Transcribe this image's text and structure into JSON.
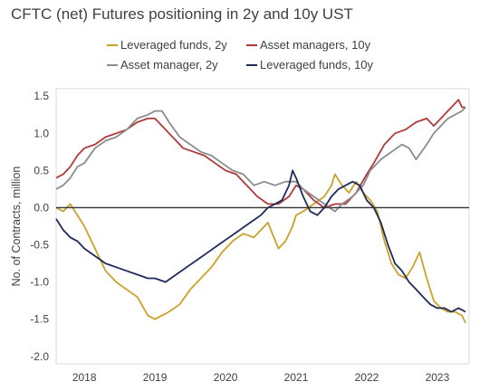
{
  "chart_data": {
    "type": "line",
    "title": "CFTC (net) Futures positioning in 2y and 10y UST",
    "xlabel": "",
    "ylabel": "No. of Contracts, million",
    "xlim": [
      2017.6,
      2023.45
    ],
    "ylim": [
      -2.1,
      1.6
    ],
    "yticks": [
      1.5,
      1.0,
      0.5,
      0.0,
      -0.5,
      -1.0,
      -1.5,
      -2.0
    ],
    "ytick_labels": [
      "1.5",
      "1.0",
      "0.5",
      "0.0",
      "-0.5",
      "-1.0",
      "-1.5",
      "-2.0"
    ],
    "xtick_labels": [
      "2018",
      "2019",
      "2020",
      "2021",
      "2022",
      "2023"
    ],
    "xtick_positions": [
      2018.0,
      2019.0,
      2020.0,
      2021.0,
      2022.0,
      2023.0
    ],
    "zero_line": true,
    "grid": false,
    "legend_position": "top",
    "series": [
      {
        "name": "Leveraged funds, 2y",
        "color": "#c9a227",
        "points": [
          [
            2017.6,
            0.0
          ],
          [
            2017.7,
            -0.05
          ],
          [
            2017.8,
            0.05
          ],
          [
            2017.9,
            -0.1
          ],
          [
            2018.0,
            -0.25
          ],
          [
            2018.15,
            -0.55
          ],
          [
            2018.3,
            -0.85
          ],
          [
            2018.45,
            -1.0
          ],
          [
            2018.6,
            -1.1
          ],
          [
            2018.75,
            -1.2
          ],
          [
            2018.9,
            -1.45
          ],
          [
            2019.0,
            -1.5
          ],
          [
            2019.1,
            -1.45
          ],
          [
            2019.2,
            -1.4
          ],
          [
            2019.35,
            -1.3
          ],
          [
            2019.5,
            -1.1
          ],
          [
            2019.65,
            -0.95
          ],
          [
            2019.8,
            -0.8
          ],
          [
            2019.95,
            -0.6
          ],
          [
            2020.1,
            -0.45
          ],
          [
            2020.25,
            -0.35
          ],
          [
            2020.4,
            -0.4
          ],
          [
            2020.5,
            -0.3
          ],
          [
            2020.6,
            -0.2
          ],
          [
            2020.75,
            -0.55
          ],
          [
            2020.85,
            -0.45
          ],
          [
            2020.95,
            -0.25
          ],
          [
            2021.0,
            -0.1
          ],
          [
            2021.1,
            -0.05
          ],
          [
            2021.25,
            0.05
          ],
          [
            2021.4,
            0.15
          ],
          [
            2021.5,
            0.3
          ],
          [
            2021.55,
            0.45
          ],
          [
            2021.65,
            0.3
          ],
          [
            2021.75,
            0.2
          ],
          [
            2021.85,
            0.35
          ],
          [
            2021.95,
            0.2
          ],
          [
            2022.05,
            0.1
          ],
          [
            2022.15,
            -0.05
          ],
          [
            2022.25,
            -0.45
          ],
          [
            2022.35,
            -0.75
          ],
          [
            2022.45,
            -0.9
          ],
          [
            2022.55,
            -0.95
          ],
          [
            2022.65,
            -0.8
          ],
          [
            2022.75,
            -0.6
          ],
          [
            2022.85,
            -0.95
          ],
          [
            2022.95,
            -1.25
          ],
          [
            2023.05,
            -1.35
          ],
          [
            2023.15,
            -1.4
          ],
          [
            2023.25,
            -1.4
          ],
          [
            2023.35,
            -1.45
          ],
          [
            2023.4,
            -1.55
          ]
        ]
      },
      {
        "name": "Asset managers, 10y",
        "color": "#b03a3a",
        "points": [
          [
            2017.6,
            0.4
          ],
          [
            2017.7,
            0.45
          ],
          [
            2017.8,
            0.55
          ],
          [
            2017.9,
            0.7
          ],
          [
            2018.0,
            0.8
          ],
          [
            2018.15,
            0.85
          ],
          [
            2018.3,
            0.95
          ],
          [
            2018.45,
            1.0
          ],
          [
            2018.6,
            1.05
          ],
          [
            2018.75,
            1.15
          ],
          [
            2018.9,
            1.2
          ],
          [
            2019.0,
            1.2
          ],
          [
            2019.1,
            1.1
          ],
          [
            2019.25,
            0.95
          ],
          [
            2019.4,
            0.8
          ],
          [
            2019.55,
            0.75
          ],
          [
            2019.7,
            0.7
          ],
          [
            2019.85,
            0.6
          ],
          [
            2020.0,
            0.5
          ],
          [
            2020.15,
            0.45
          ],
          [
            2020.3,
            0.3
          ],
          [
            2020.45,
            0.15
          ],
          [
            2020.6,
            0.05
          ],
          [
            2020.75,
            0.05
          ],
          [
            2020.9,
            0.15
          ],
          [
            2021.0,
            0.3
          ],
          [
            2021.1,
            0.25
          ],
          [
            2021.25,
            0.1
          ],
          [
            2021.4,
            0.0
          ],
          [
            2021.55,
            0.05
          ],
          [
            2021.7,
            0.05
          ],
          [
            2021.85,
            0.2
          ],
          [
            2022.0,
            0.45
          ],
          [
            2022.1,
            0.6
          ],
          [
            2022.25,
            0.85
          ],
          [
            2022.4,
            1.0
          ],
          [
            2022.55,
            1.05
          ],
          [
            2022.7,
            1.15
          ],
          [
            2022.85,
            1.2
          ],
          [
            2022.95,
            1.1
          ],
          [
            2023.05,
            1.2
          ],
          [
            2023.15,
            1.3
          ],
          [
            2023.25,
            1.4
          ],
          [
            2023.3,
            1.45
          ],
          [
            2023.35,
            1.35
          ],
          [
            2023.4,
            1.35
          ]
        ]
      },
      {
        "name": "Asset manager, 2y",
        "color": "#8c8c8c",
        "points": [
          [
            2017.6,
            0.25
          ],
          [
            2017.7,
            0.3
          ],
          [
            2017.8,
            0.4
          ],
          [
            2017.9,
            0.55
          ],
          [
            2018.0,
            0.6
          ],
          [
            2018.15,
            0.8
          ],
          [
            2018.3,
            0.9
          ],
          [
            2018.45,
            0.95
          ],
          [
            2018.6,
            1.05
          ],
          [
            2018.75,
            1.2
          ],
          [
            2018.9,
            1.25
          ],
          [
            2019.0,
            1.3
          ],
          [
            2019.1,
            1.3
          ],
          [
            2019.2,
            1.15
          ],
          [
            2019.35,
            0.95
          ],
          [
            2019.5,
            0.85
          ],
          [
            2019.65,
            0.75
          ],
          [
            2019.8,
            0.7
          ],
          [
            2019.95,
            0.6
          ],
          [
            2020.1,
            0.5
          ],
          [
            2020.25,
            0.45
          ],
          [
            2020.4,
            0.3
          ],
          [
            2020.55,
            0.35
          ],
          [
            2020.7,
            0.3
          ],
          [
            2020.85,
            0.35
          ],
          [
            2021.0,
            0.35
          ],
          [
            2021.1,
            0.25
          ],
          [
            2021.25,
            0.15
          ],
          [
            2021.4,
            0.05
          ],
          [
            2021.55,
            -0.05
          ],
          [
            2021.65,
            0.05
          ],
          [
            2021.8,
            0.15
          ],
          [
            2021.95,
            0.3
          ],
          [
            2022.05,
            0.5
          ],
          [
            2022.2,
            0.65
          ],
          [
            2022.35,
            0.75
          ],
          [
            2022.5,
            0.85
          ],
          [
            2022.6,
            0.8
          ],
          [
            2022.7,
            0.65
          ],
          [
            2022.85,
            0.85
          ],
          [
            2022.95,
            1.0
          ],
          [
            2023.05,
            1.1
          ],
          [
            2023.15,
            1.2
          ],
          [
            2023.25,
            1.25
          ],
          [
            2023.35,
            1.3
          ],
          [
            2023.4,
            1.35
          ]
        ]
      },
      {
        "name": "Leveraged funds, 10y",
        "color": "#1f2a5c",
        "points": [
          [
            2017.6,
            -0.15
          ],
          [
            2017.7,
            -0.3
          ],
          [
            2017.8,
            -0.4
          ],
          [
            2017.9,
            -0.45
          ],
          [
            2018.0,
            -0.55
          ],
          [
            2018.15,
            -0.65
          ],
          [
            2018.3,
            -0.75
          ],
          [
            2018.45,
            -0.8
          ],
          [
            2018.6,
            -0.85
          ],
          [
            2018.75,
            -0.9
          ],
          [
            2018.9,
            -0.95
          ],
          [
            2019.0,
            -0.95
          ],
          [
            2019.15,
            -1.0
          ],
          [
            2019.3,
            -0.9
          ],
          [
            2019.45,
            -0.8
          ],
          [
            2019.6,
            -0.7
          ],
          [
            2019.75,
            -0.6
          ],
          [
            2019.9,
            -0.5
          ],
          [
            2020.05,
            -0.4
          ],
          [
            2020.2,
            -0.3
          ],
          [
            2020.35,
            -0.2
          ],
          [
            2020.5,
            -0.1
          ],
          [
            2020.6,
            0.0
          ],
          [
            2020.7,
            0.05
          ],
          [
            2020.8,
            0.1
          ],
          [
            2020.9,
            0.3
          ],
          [
            2020.95,
            0.5
          ],
          [
            2021.0,
            0.4
          ],
          [
            2021.1,
            0.15
          ],
          [
            2021.2,
            -0.05
          ],
          [
            2021.3,
            -0.1
          ],
          [
            2021.4,
            0.0
          ],
          [
            2021.5,
            0.15
          ],
          [
            2021.6,
            0.25
          ],
          [
            2021.7,
            0.3
          ],
          [
            2021.8,
            0.35
          ],
          [
            2021.9,
            0.3
          ],
          [
            2022.0,
            0.1
          ],
          [
            2022.1,
            0.0
          ],
          [
            2022.2,
            -0.2
          ],
          [
            2022.3,
            -0.5
          ],
          [
            2022.4,
            -0.75
          ],
          [
            2022.5,
            -0.85
          ],
          [
            2022.6,
            -1.0
          ],
          [
            2022.7,
            -1.1
          ],
          [
            2022.8,
            -1.2
          ],
          [
            2022.9,
            -1.3
          ],
          [
            2023.0,
            -1.35
          ],
          [
            2023.1,
            -1.35
          ],
          [
            2023.2,
            -1.4
          ],
          [
            2023.3,
            -1.35
          ],
          [
            2023.4,
            -1.4
          ]
        ]
      }
    ]
  }
}
